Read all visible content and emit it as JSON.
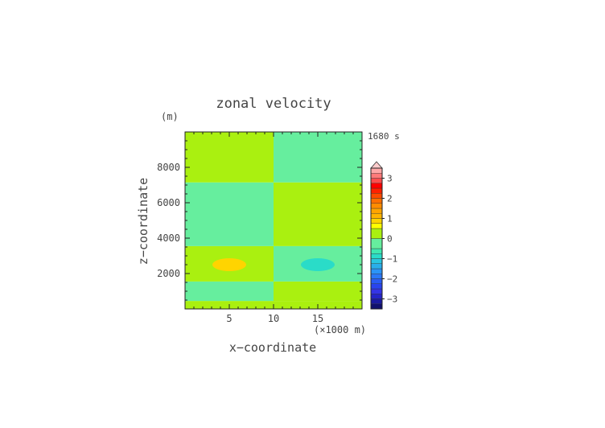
{
  "chart_data": {
    "type": "heatmap",
    "title": "zonal velocity",
    "time_label": "1680 s",
    "xlabel": "x−coordinate",
    "ylabel": "z−coordinate",
    "x_unit_label": "(×1000 m)",
    "y_unit_label": "(m)",
    "xlim": [
      0,
      20
    ],
    "ylim": [
      0,
      10000
    ],
    "xticks": [
      5,
      10,
      15
    ],
    "yticks": [
      2000,
      4000,
      6000,
      8000
    ],
    "colorbar": {
      "levels": [
        -3.5,
        -3.25,
        -3,
        -2.75,
        -2.5,
        -2.25,
        -2,
        -1.75,
        -1.5,
        -1.25,
        -1,
        -0.75,
        -0.5,
        0,
        0.5,
        0.75,
        1,
        1.25,
        1.5,
        1.75,
        2,
        2.25,
        2.5,
        2.75,
        3,
        3.25,
        3.5
      ],
      "colors": [
        "#10106e",
        "#1a1aa0",
        "#2424c8",
        "#3434e6",
        "#2a44ee",
        "#2a5cf4",
        "#2a78f6",
        "#2a94f6",
        "#2aaeea",
        "#2ac6e0",
        "#2adcc8",
        "#40e8b0",
        "#66ee9e",
        "#aaf010",
        "#ffff00",
        "#ffd400",
        "#ffb400",
        "#ffa400",
        "#ff8c00",
        "#ff6e00",
        "#ff4a00",
        "#ff2000",
        "#ff0000",
        "#ff4d4d",
        "#ff7a7a",
        "#ffa8a8"
      ],
      "tick_labels": [
        "3",
        "2",
        "1",
        "0",
        "−1",
        "−2",
        "−3"
      ],
      "tick_values": [
        3,
        2,
        1,
        0,
        -1,
        -2,
        -3
      ]
    },
    "field": {
      "description_bands": [
        {
          "z_range": [
            0,
            450
          ],
          "left_value": 0.2,
          "right_value": 0.2
        },
        {
          "z_range": [
            450,
            1550
          ],
          "left_value": -0.2,
          "right_value": 0.2
        },
        {
          "z_range": [
            1550,
            3550
          ],
          "left_value": 0.2,
          "right_value": -0.2
        },
        {
          "z_range": [
            3550,
            7150
          ],
          "left_value": -0.2,
          "right_value": 0.2
        },
        {
          "z_range": [
            7150,
            10000
          ],
          "left_value": 0.2,
          "right_value": -0.2
        }
      ],
      "anomalies": [
        {
          "x": 5,
          "z": 2500,
          "value": 0.8
        },
        {
          "x": 15,
          "z": 2500,
          "value": -0.8
        }
      ]
    }
  }
}
